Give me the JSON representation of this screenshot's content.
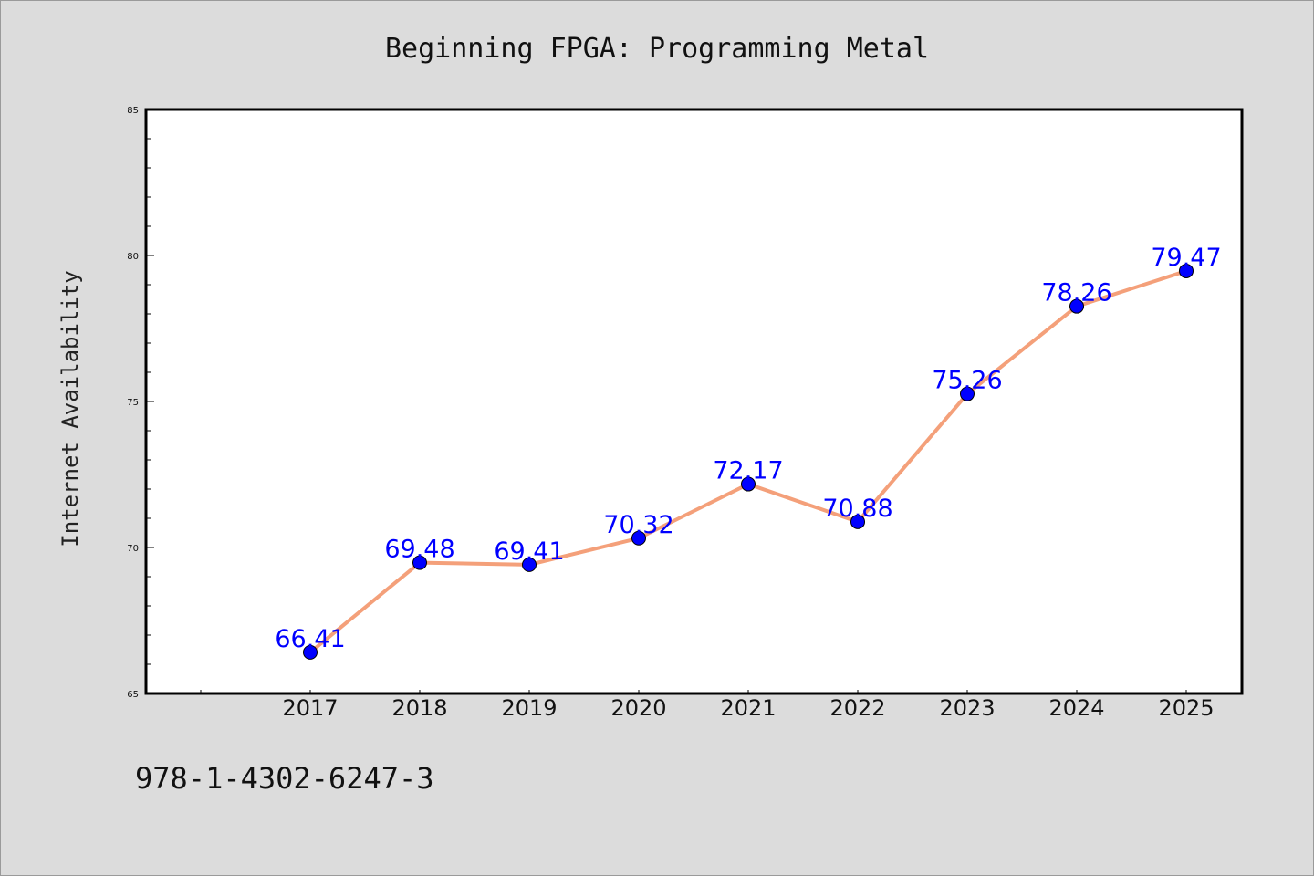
{
  "chart_data": {
    "type": "line",
    "title": "Beginning FPGA: Programming Metal",
    "xlabel": "",
    "ylabel": "Internet Availability",
    "categories": [
      "2017",
      "2018",
      "2019",
      "2020",
      "2021",
      "2022",
      "2023",
      "2024",
      "2025"
    ],
    "values": [
      66.41,
      69.48,
      69.41,
      70.32,
      72.17,
      70.88,
      75.26,
      78.26,
      79.47
    ],
    "data_labels": [
      "66.41",
      "69.48",
      "69.41",
      "70.32",
      "72.17",
      "70.88",
      "75.26",
      "78.26",
      "79.47"
    ],
    "ylim": [
      65,
      85
    ],
    "yticks": [
      65,
      70,
      75,
      80,
      85
    ],
    "ytick_labels": [
      "65",
      "70",
      "75",
      "80",
      "85"
    ],
    "y_minor_step": 1,
    "grid": false,
    "legend": "none",
    "line_color": "#f4a07a",
    "marker_color": "#0000ff",
    "label_color": "#0000ff"
  },
  "footer": {
    "isbn": "978-1-4302-6247-3"
  },
  "colors": {
    "background": "#dcdcdc",
    "plot_area": "#ffffff",
    "axis": "#000000"
  }
}
